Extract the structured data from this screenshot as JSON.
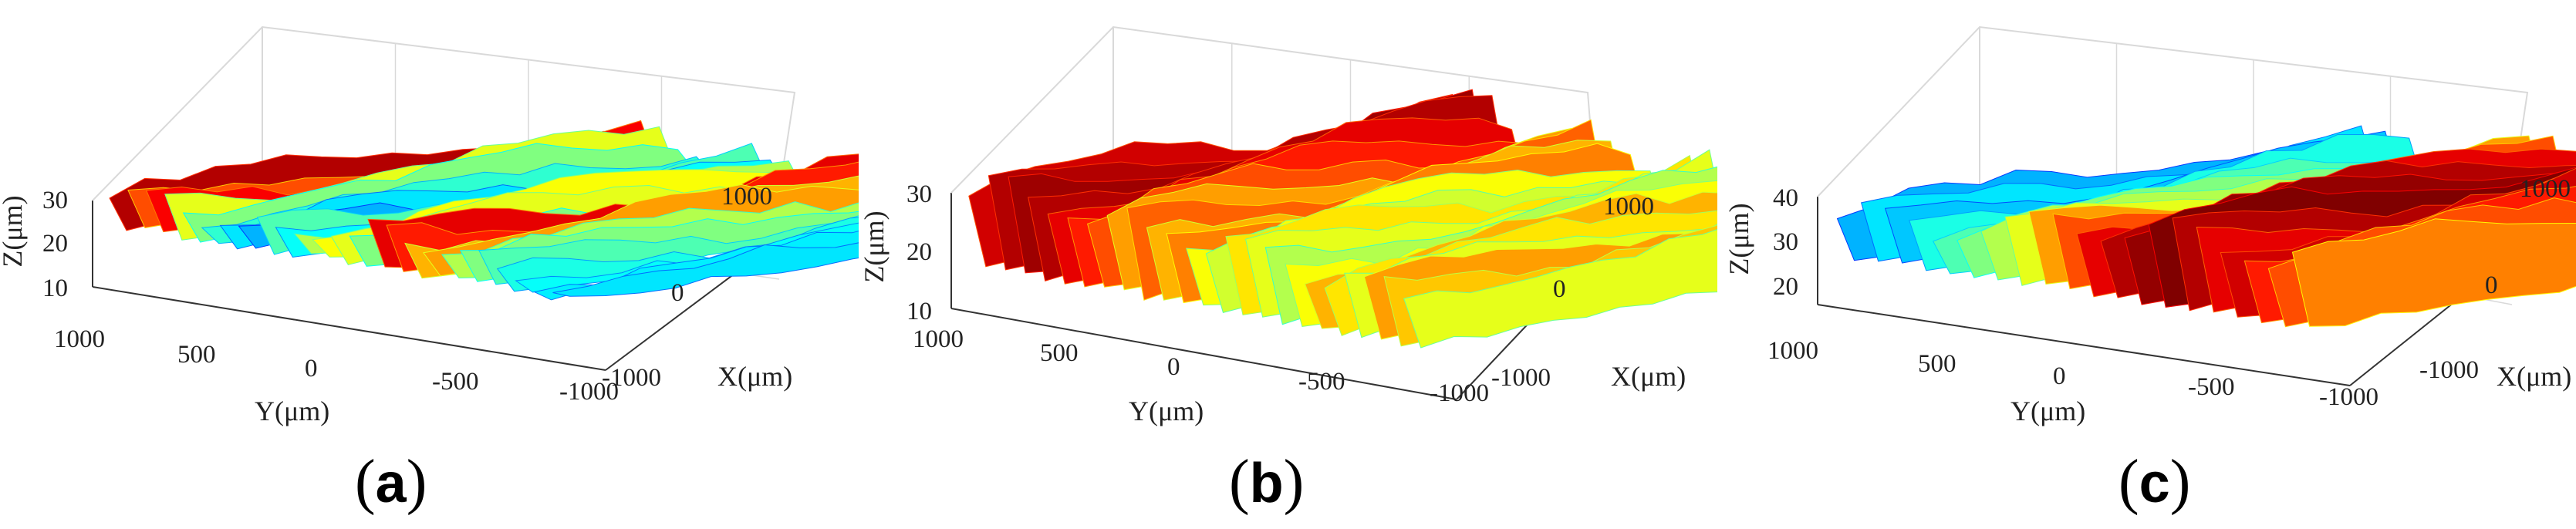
{
  "figure": {
    "colormap": [
      "#00008f",
      "#0000ff",
      "#0080ff",
      "#00ffff",
      "#80ff80",
      "#ffff00",
      "#ff8000",
      "#ff0000",
      "#800000"
    ],
    "grid_color": "#d9d9d9",
    "axis_color": "#333333"
  },
  "chart_data": [
    {
      "type": "surface3d",
      "panel_label": "a",
      "xlabel": "X(μm)",
      "ylabel": "Y(μm)",
      "zlabel": "Z(μm)",
      "x_ticks": [
        "1000",
        "0",
        "-1000"
      ],
      "y_ticks": [
        "1000",
        "500",
        "0",
        "-500",
        "-1000"
      ],
      "z_ticks": [
        "30",
        "20",
        "10"
      ],
      "xlim": [
        -1000,
        1000
      ],
      "ylim": [
        -1000,
        1000
      ],
      "zlim": [
        10,
        30
      ],
      "ridge_peak_z": [
        27.5,
        25.5,
        26.5,
        28,
        27,
        24.5,
        23.5,
        22.5,
        25,
        24,
        26,
        27,
        26.5,
        25,
        28.5,
        28,
        27,
        27.5,
        26,
        25.5,
        24.5,
        23,
        22.5,
        22,
        21.5
      ],
      "ridge_peak_colormap": [
        0.95,
        0.8,
        0.88,
        0.6,
        0.5,
        0.42,
        0.35,
        0.3,
        0.45,
        0.38,
        0.55,
        0.62,
        0.6,
        0.5,
        0.9,
        0.85,
        0.7,
        0.72,
        0.55,
        0.5,
        0.45,
        0.4,
        0.38,
        0.36,
        0.35
      ],
      "valley_z": 17
    },
    {
      "type": "surface3d",
      "panel_label": "b",
      "xlabel": "X(μm)",
      "ylabel": "Y(μm)",
      "zlabel": "Z(μm)",
      "x_ticks": [
        "1000",
        "0",
        "-1000"
      ],
      "y_ticks": [
        "1000",
        "500",
        "0",
        "-500",
        "-1000"
      ],
      "z_ticks": [
        "30",
        "20",
        "10"
      ],
      "xlim": [
        -1000,
        1000
      ],
      "ylim": [
        -1000,
        1000
      ],
      "zlim": [
        10,
        30
      ],
      "ridge_peak_z": [
        28,
        28.5,
        29,
        29.5,
        29,
        28,
        27.5,
        27,
        27.5,
        26.5,
        27,
        26,
        25.5,
        26,
        25.5,
        25,
        24.5,
        24.5,
        24,
        23.5,
        24,
        23.5,
        23
      ],
      "ridge_peak_colormap": [
        0.92,
        0.95,
        0.97,
        0.95,
        0.9,
        0.85,
        0.8,
        0.72,
        0.78,
        0.7,
        0.75,
        0.62,
        0.58,
        0.65,
        0.6,
        0.55,
        0.62,
        0.7,
        0.65,
        0.6,
        0.72,
        0.68,
        0.6
      ],
      "valley_z": 12
    },
    {
      "type": "surface3d",
      "panel_label": "c",
      "xlabel": "X(μm)",
      "ylabel": "Y(μm)",
      "zlabel": "Z(μm)",
      "x_ticks": [
        "1000",
        "0",
        "-1000"
      ],
      "y_ticks": [
        "1000",
        "500",
        "0",
        "-500",
        "-1000"
      ],
      "z_ticks": [
        "40",
        "30",
        "20"
      ],
      "xlim": [
        -1000,
        1000
      ],
      "ylim": [
        -1000,
        1000
      ],
      "zlim": [
        15,
        40
      ],
      "ridge_peak_z": [
        32,
        33,
        32.5,
        33.5,
        32,
        33,
        34,
        35,
        37,
        38,
        39,
        40,
        40.5,
        41,
        40,
        39.5,
        40,
        39,
        38.5,
        38
      ],
      "ridge_peak_colormap": [
        0.3,
        0.35,
        0.32,
        0.4,
        0.45,
        0.5,
        0.55,
        0.6,
        0.72,
        0.8,
        0.9,
        0.95,
        0.98,
        1.0,
        0.95,
        0.9,
        0.92,
        0.85,
        0.8,
        0.75
      ],
      "valley_z": 19
    }
  ]
}
